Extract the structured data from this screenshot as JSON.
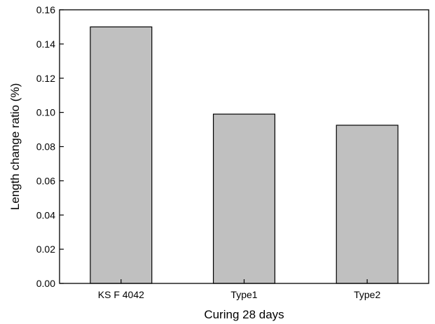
{
  "chart_data": {
    "type": "bar",
    "categories": [
      "KS F 4042",
      "Type1",
      "Type2"
    ],
    "values": [
      0.15,
      0.099,
      0.0925
    ],
    "xlabel": "Curing 28 days",
    "ylabel": "Length change ratio (%)",
    "ylim": [
      0,
      0.16
    ],
    "yticks": [
      "0.00",
      "0.02",
      "0.04",
      "0.06",
      "0.08",
      "0.10",
      "0.12",
      "0.14",
      "0.16"
    ],
    "grid": false,
    "colors": {
      "bar_fill": "#c0c0c0",
      "bar_stroke": "#000000",
      "axis": "#000000"
    }
  }
}
